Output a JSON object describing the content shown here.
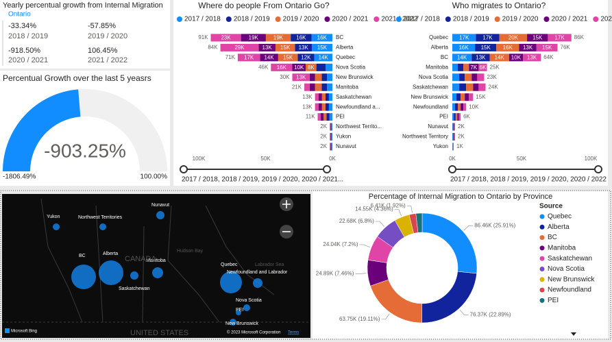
{
  "growth": {
    "title": "Yearly percentual growth from Internal Migration",
    "region": "Ontario",
    "items": [
      {
        "value": "-33.34%",
        "period": "2018 / 2019"
      },
      {
        "value": "-57.85%",
        "period": "2019 / 2020"
      },
      {
        "value": "-918.50%",
        "period": "2020 / 2021"
      },
      {
        "value": "106.45%",
        "period": "2021 / 2022"
      }
    ]
  },
  "map": {
    "labels": [
      "Yukon",
      "Northwest Territories",
      "Nunavut",
      "BC",
      "Alberta",
      "Manitoba",
      "Saskatchewan",
      "Quebec",
      "Newfoundland and Labrador",
      "Nova Scotia",
      "PEI",
      "New Brunswick"
    ],
    "region_labels": [
      "CANADA",
      "Hudson Bay",
      "Labrador Sea",
      "UNITED STATES"
    ],
    "logo": "Microsoft Bing",
    "attribution": "© 2023 Microsoft Corporation",
    "terms": "Terms"
  },
  "chart_data": [
    {
      "type": "gauge",
      "title": "Percentual Growth over the last 5 yeasrs",
      "values": [
        -903.25
      ],
      "value_labels": [
        "-903.25%"
      ],
      "color": "#118DFF",
      "ylim": [
        -1806.49,
        100
      ],
      "yticks": [
        {
          "value": -1806.49,
          "label": "-1806.49%"
        },
        {
          "value": 100,
          "label": "100.00%"
        }
      ]
    },
    {
      "type": "hbar_stacked",
      "title": "Where do people From Ontario Go?",
      "categories": [
        "BC",
        "Alberta",
        "Quebec",
        "Nova Scotia",
        "New Brunswick",
        "Manitoba",
        "Saskatchewan",
        "Newfoundland a...",
        "PEI",
        "Northwest Territo...",
        "Yukon",
        "Nunavut"
      ],
      "series": [
        {
          "name": "2017 / 2018",
          "color": "#118DFF",
          "values": [
            15600,
            15400,
            13600,
            5000,
            4000,
            4000,
            2600,
            2600,
            2200,
            400,
            400,
            400
          ],
          "value_labels": [
            "16K",
            "15K",
            "14K",
            null,
            null,
            null,
            null,
            null,
            null,
            null,
            null,
            null
          ]
        },
        {
          "name": "2018 / 2019",
          "color": "#12239E",
          "values": [
            15600,
            12600,
            12400,
            7000,
            4000,
            4000,
            2600,
            2600,
            2200,
            400,
            400,
            400
          ],
          "value_labels": [
            "16K",
            "13K",
            "12K",
            null,
            null,
            null,
            null,
            null,
            null,
            null,
            null,
            null
          ]
        },
        {
          "name": "2019 / 2020",
          "color": "#E66C37",
          "values": [
            18600,
            14600,
            14600,
            8000,
            5000,
            5000,
            2600,
            2600,
            2200,
            400,
            400,
            400
          ],
          "value_labels": [
            "19K",
            "15K",
            "15K",
            "8K",
            null,
            null,
            null,
            null,
            null,
            null,
            null,
            null
          ]
        },
        {
          "name": "2020 / 2021",
          "color": "#6B007B",
          "values": [
            18600,
            12600,
            13600,
            10000,
            4000,
            4000,
            2600,
            2600,
            2200,
            400,
            400,
            400
          ],
          "value_labels": [
            "19K",
            "13K",
            "14K",
            "10K",
            null,
            null,
            null,
            null,
            null,
            null,
            null,
            null
          ]
        },
        {
          "name": "2021 / 2022",
          "color": "#E044A7",
          "values": [
            22600,
            28600,
            16600,
            16000,
            13000,
            4000,
            2600,
            2600,
            2200,
            400,
            400,
            400
          ],
          "value_labels": [
            "23K",
            "29K",
            "17K",
            "16K",
            "13K",
            null,
            null,
            null,
            null,
            null,
            null,
            null
          ]
        }
      ],
      "totals": [
        91000,
        83800,
        70800,
        46000,
        30000,
        21000,
        13000,
        13000,
        11000,
        2000,
        2000,
        2000
      ],
      "total_labels": [
        "91K",
        "84K",
        "71K",
        "46K",
        "30K",
        "21K",
        "13K",
        "13K",
        "11K",
        "2K",
        "2K",
        "2K"
      ],
      "xlim": [
        100000,
        0
      ],
      "xticks": [
        {
          "value": 100000,
          "label": "100K"
        },
        {
          "value": 50000,
          "label": "50K"
        },
        {
          "value": 0,
          "label": "0K"
        }
      ],
      "grid": false,
      "slider_label": "2017 / 2018, 2018 / 2019, 2019 / 2020, 2020 / 2021..."
    },
    {
      "type": "hbar_stacked",
      "title": "Who migrates to Ontario?",
      "categories": [
        "Quebec",
        "Alberta",
        "BC",
        "Manitoba",
        "Nova Scotia",
        "Saskatchewan",
        "New Brunswick",
        "Newfoundland",
        "PEI",
        "Nunavut",
        "Northwest Territory",
        "Yukon"
      ],
      "series": [
        {
          "name": "2017 / 2018",
          "color": "#118DFF",
          "values": [
            17000,
            16400,
            14000,
            4000,
            5000,
            5000,
            3000,
            2000,
            1200,
            400,
            400,
            200
          ],
          "value_labels": [
            "17K",
            "16K",
            "14K",
            null,
            null,
            null,
            null,
            null,
            null,
            null,
            null,
            null
          ]
        },
        {
          "name": "2018 / 2019",
          "color": "#12239E",
          "values": [
            17000,
            15400,
            13000,
            4000,
            4000,
            5000,
            3000,
            2000,
            1200,
            400,
            400,
            200
          ],
          "value_labels": [
            "17K",
            "15K",
            "13K",
            null,
            null,
            null,
            null,
            null,
            null,
            null,
            null,
            null
          ]
        },
        {
          "name": "2019 / 2020",
          "color": "#E66C37",
          "values": [
            20000,
            16400,
            14000,
            4000,
            5000,
            5000,
            3000,
            2000,
            1200,
            400,
            400,
            200
          ],
          "value_labels": [
            "20K",
            "16K",
            "14K",
            null,
            null,
            null,
            null,
            null,
            null,
            null,
            null,
            null
          ]
        },
        {
          "name": "2020 / 2021",
          "color": "#6B007B",
          "values": [
            15000,
            12600,
            10000,
            7000,
            4000,
            4000,
            3000,
            2000,
            1200,
            400,
            400,
            200
          ],
          "value_labels": [
            "15K",
            "13K",
            "10K",
            "7K",
            null,
            null,
            null,
            null,
            null,
            null,
            null,
            null
          ]
        },
        {
          "name": "2020 / 2022",
          "color": "#E044A7",
          "values": [
            17000,
            15200,
            13000,
            6000,
            5000,
            5000,
            3000,
            2000,
            1200,
            400,
            400,
            200
          ],
          "value_labels": [
            "17K",
            "15K",
            "13K",
            "6K",
            null,
            null,
            null,
            null,
            null,
            null,
            null,
            null
          ]
        }
      ],
      "totals": [
        86000,
        76000,
        64000,
        25000,
        23000,
        24000,
        15000,
        10000,
        6000,
        2000,
        2000,
        1000
      ],
      "total_labels": [
        "86K",
        "76K",
        "64K",
        "25K",
        "23K",
        "24K",
        "15K",
        "10K",
        "6K",
        "2K",
        "2K",
        "1K"
      ],
      "xlim": [
        0,
        100000
      ],
      "xticks": [
        {
          "value": 0,
          "label": "0K"
        },
        {
          "value": 50000,
          "label": "50K"
        },
        {
          "value": 100000,
          "label": "100K"
        }
      ],
      "grid": false,
      "slider_label": "2017 / 2018, 2018 / 2019, 2019 / 2020, 2020 / 2022"
    },
    {
      "type": "donut",
      "title": "Percentage of Internal Migration to Ontario by Province",
      "legend_title": "Source",
      "categories": [
        "Quebec",
        "Alberta",
        "BC",
        "Manitoba",
        "Saskatchewan",
        "Nova Scotia",
        "New Brunswick",
        "Newfoundland",
        "PEI"
      ],
      "colors": [
        "#118DFF",
        "#12239E",
        "#E66C37",
        "#6B007B",
        "#E044A7",
        "#744EC2",
        "#D9B300",
        "#D64550",
        "#197278"
      ],
      "values": [
        86460,
        76370,
        63750,
        24890,
        24040,
        22680,
        14550,
        6410,
        6000
      ],
      "value_labels": [
        "86.46K (25.91%)",
        "76.37K (22.89%)",
        "63.75K (19.11%)",
        "24.89K (7.46%)",
        "24.04K (7.2%)",
        "22.68K (6.8%)",
        "14.55K (4.36%)",
        "6.41K (1.92%)",
        null
      ],
      "legend": "right"
    }
  ]
}
